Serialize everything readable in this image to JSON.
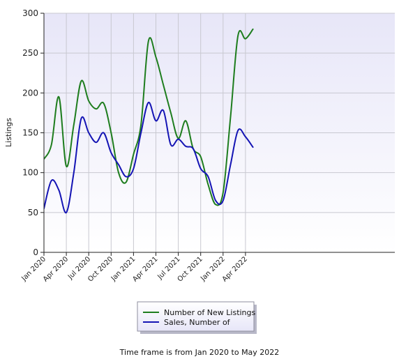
{
  "chart_data": {
    "type": "line",
    "ylabel": "Listings",
    "xlabel": "",
    "ylim": [
      0,
      300
    ],
    "yticks": [
      0,
      50,
      100,
      150,
      200,
      250,
      300
    ],
    "xticks": [
      "Jan 2020",
      "Apr 2020",
      "Jul 2020",
      "Oct 2020",
      "Jan 2021",
      "Apr 2021",
      "Jul 2021",
      "Oct 2021",
      "Jan 2022",
      "Apr 2022"
    ],
    "x": [
      "Jan 2020",
      "Feb 2020",
      "Mar 2020",
      "Apr 2020",
      "May 2020",
      "Jun 2020",
      "Jul 2020",
      "Aug 2020",
      "Sep 2020",
      "Oct 2020",
      "Nov 2020",
      "Dec 2020",
      "Jan 2021",
      "Feb 2021",
      "Mar 2021",
      "Apr 2021",
      "May 2021",
      "Jun 2021",
      "Jul 2021",
      "Aug 2021",
      "Sep 2021",
      "Oct 2021",
      "Nov 2021",
      "Dec 2021",
      "Jan 2022",
      "Feb 2022",
      "Mar 2022",
      "Apr 2022",
      "May 2022"
    ],
    "series": [
      {
        "name": "Number of New Listings",
        "color": "#1e7d1e",
        "values": [
          117,
          135,
          195,
          108,
          160,
          215,
          190,
          180,
          187,
          150,
          100,
          88,
          123,
          160,
          265,
          245,
          210,
          175,
          143,
          165,
          130,
          120,
          85,
          60,
          75,
          170,
          272,
          268,
          280
        ]
      },
      {
        "name": "Sales, Number of",
        "color": "#1414b4",
        "values": [
          55,
          90,
          78,
          50,
          100,
          168,
          150,
          138,
          150,
          125,
          110,
          95,
          105,
          150,
          188,
          165,
          178,
          135,
          142,
          133,
          130,
          105,
          95,
          65,
          65,
          110,
          153,
          145,
          132
        ]
      }
    ],
    "grid": true,
    "legend_position": "bottom"
  },
  "footnote": "Time frame is from Jan 2020 to May 2022"
}
